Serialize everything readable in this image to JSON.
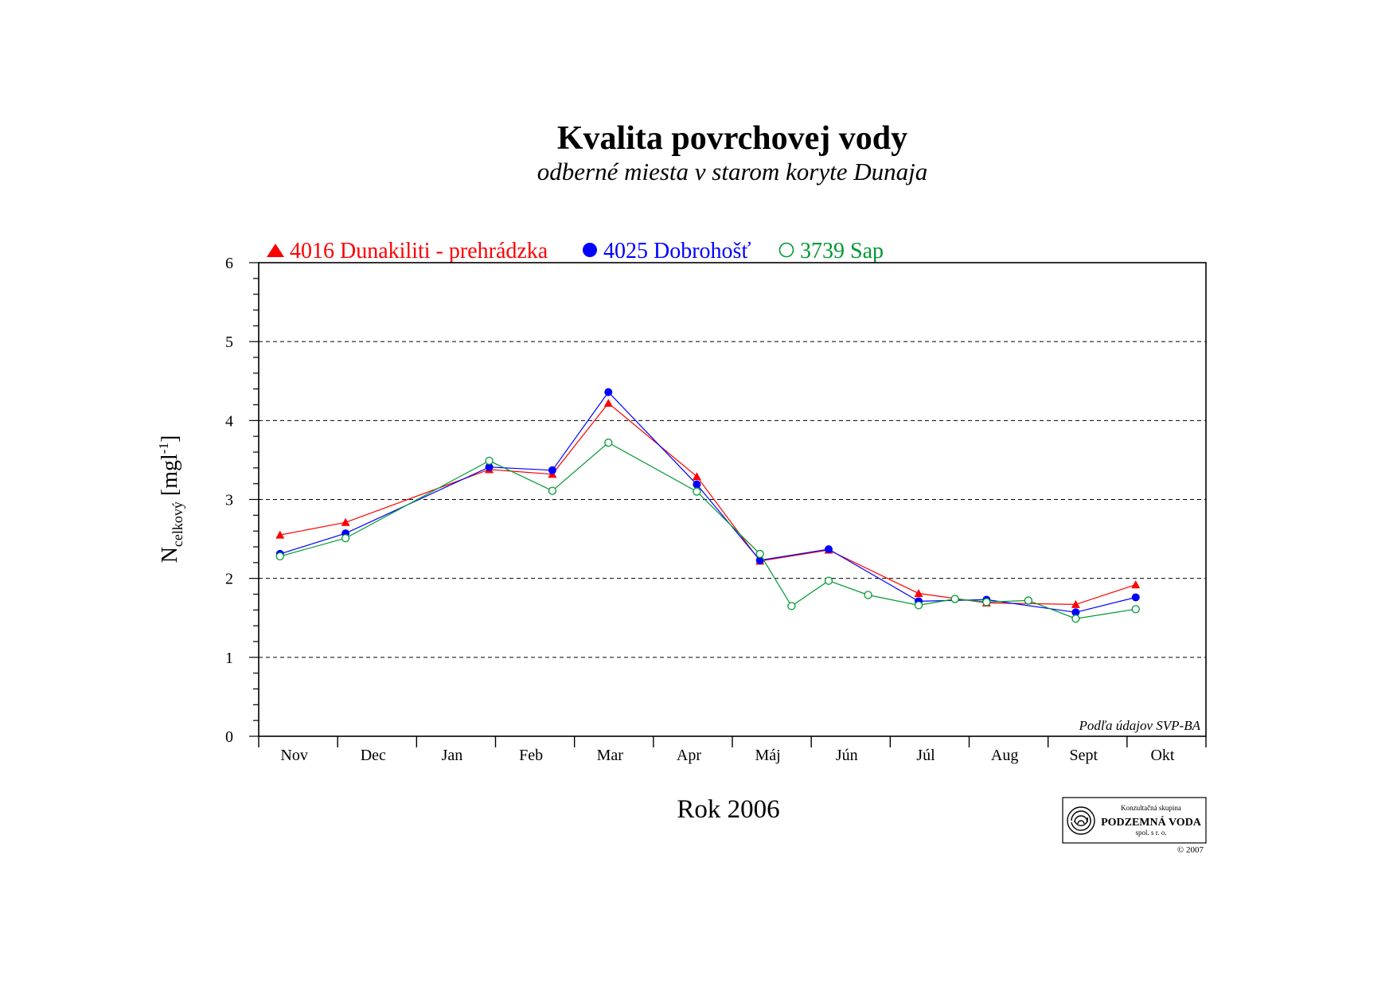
{
  "chart_data": {
    "type": "line",
    "title": "Kvalita povrchovej vody",
    "subtitle": "odberné miesta v starom koryte Dunaja",
    "xlabel": "Rok 2006",
    "ylabel": {
      "main": "N",
      "subscript": "celkový",
      "unit_open": " [mgl",
      "unit_sup": "-1",
      "unit_close": "]"
    },
    "ylim": [
      0,
      6
    ],
    "yticks": [
      "0",
      "1",
      "2",
      "3",
      "4",
      "5",
      "6"
    ],
    "grid": "horizontal dashed",
    "legend_position": "top-left",
    "months": [
      "Nov",
      "Dec",
      "Jan",
      "Feb",
      "Mar",
      "Apr",
      "Máj",
      "Jún",
      "Júl",
      "Aug",
      "Sept",
      "Okt"
    ],
    "x_domain": [
      0,
      12
    ],
    "series": [
      {
        "name": "4016 Dunakiliti - prehrádzka",
        "marker": "filled-triangle",
        "color": "#ff0000",
        "points": [
          [
            0.27,
            2.55
          ],
          [
            1.1,
            2.71
          ],
          [
            2.92,
            3.38
          ],
          [
            3.72,
            3.32
          ],
          [
            4.43,
            4.22
          ],
          [
            5.55,
            3.29
          ],
          [
            6.35,
            2.22
          ],
          [
            7.22,
            2.36
          ],
          [
            8.36,
            1.81
          ],
          [
            9.22,
            1.69
          ],
          [
            10.35,
            1.67
          ],
          [
            11.11,
            1.92
          ]
        ]
      },
      {
        "name": "4025 Dobrohošť",
        "marker": "filled-circle",
        "color": "#0000ff",
        "points": [
          [
            0.27,
            2.31
          ],
          [
            1.1,
            2.57
          ],
          [
            2.92,
            3.41
          ],
          [
            3.72,
            3.37
          ],
          [
            4.43,
            4.36
          ],
          [
            5.55,
            3.19
          ],
          [
            6.35,
            2.23
          ],
          [
            7.22,
            2.37
          ],
          [
            8.36,
            1.71
          ],
          [
            9.22,
            1.73
          ],
          [
            10.35,
            1.57
          ],
          [
            11.11,
            1.76
          ]
        ]
      },
      {
        "name": "3739 Sap",
        "marker": "open-circle",
        "color": "#009933",
        "points": [
          [
            0.27,
            2.28
          ],
          [
            1.1,
            2.51
          ],
          [
            2.92,
            3.49
          ],
          [
            3.72,
            3.11
          ],
          [
            4.43,
            3.72
          ],
          [
            5.55,
            3.1
          ],
          [
            6.35,
            2.31
          ],
          [
            6.75,
            1.65
          ],
          [
            7.22,
            1.97
          ],
          [
            7.72,
            1.79
          ],
          [
            8.36,
            1.66
          ],
          [
            8.82,
            1.74
          ],
          [
            9.22,
            1.7
          ],
          [
            9.75,
            1.72
          ],
          [
            10.35,
            1.49
          ],
          [
            11.11,
            1.61
          ]
        ]
      }
    ],
    "annotation": "Podľa údajov SVP-BA"
  },
  "logo": {
    "line1": "Konzultačná skupina",
    "line2": "PODZEMNÁ VODA",
    "line3": "spol. s r. o.",
    "copyright": "© 2007"
  }
}
